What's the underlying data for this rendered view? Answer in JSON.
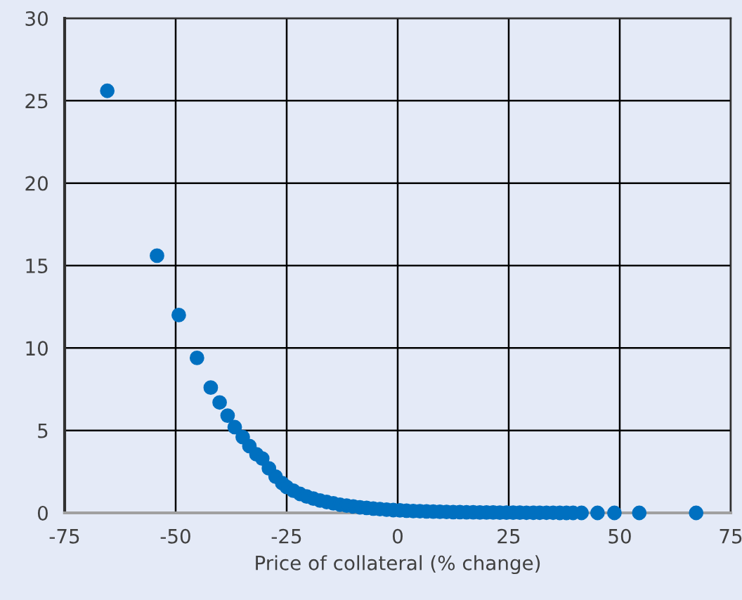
{
  "chart_data": {
    "type": "scatter",
    "xlabel": "Price of collateral (% change)",
    "x": [
      -65.4,
      -54.2,
      -49.3,
      -45.2,
      -42.1,
      -40.1,
      -38.3,
      -36.7,
      -34.9,
      -33.4,
      -31.8,
      -30.5,
      -29,
      -27.5,
      -26,
      -25,
      -23.5,
      -22,
      -20.5,
      -19,
      -17.5,
      -16,
      -14.5,
      -13,
      -11.5,
      -10,
      -8.5,
      -7,
      -5.5,
      -4,
      -2.5,
      -1,
      0.5,
      2,
      3.5,
      5,
      6.5,
      8,
      9.5,
      11,
      12.5,
      14,
      15.5,
      17,
      18.5,
      20,
      21.5,
      23,
      24.5,
      26,
      27.5,
      29,
      30.5,
      32,
      33.5,
      35,
      36.5,
      38,
      39.5,
      41.4,
      45,
      48.8,
      54.4,
      67.2
    ],
    "series": [
      {
        "color": "#0070c0",
        "values": [
          25.6,
          15.6,
          12.0,
          9.4,
          7.6,
          6.7,
          5.9,
          5.2,
          4.6,
          4.05,
          3.55,
          3.3,
          2.7,
          2.2,
          1.8,
          1.57,
          1.35,
          1.15,
          1.0,
          0.87,
          0.75,
          0.66,
          0.58,
          0.5,
          0.44,
          0.39,
          0.34,
          0.3,
          0.26,
          0.23,
          0.2,
          0.17,
          0.15,
          0.13,
          0.11,
          0.1,
          0.09,
          0.08,
          0.07,
          0.06,
          0.05,
          0.05,
          0.04,
          0.04,
          0.03,
          0.03,
          0.03,
          0.02,
          0.02,
          0.02,
          0.02,
          0.01,
          0.01,
          0.01,
          0.01,
          0.01,
          0,
          0,
          0,
          0,
          0,
          0,
          0,
          0
        ]
      }
    ],
    "xlim": [
      -75,
      75
    ],
    "xticks": [
      -75,
      -50,
      -25,
      0,
      25,
      50,
      75
    ],
    "ylim": [
      0,
      30
    ],
    "yticks": [
      0,
      5,
      10,
      15,
      20,
      25,
      30
    ],
    "grid": true,
    "marker": "circle"
  }
}
